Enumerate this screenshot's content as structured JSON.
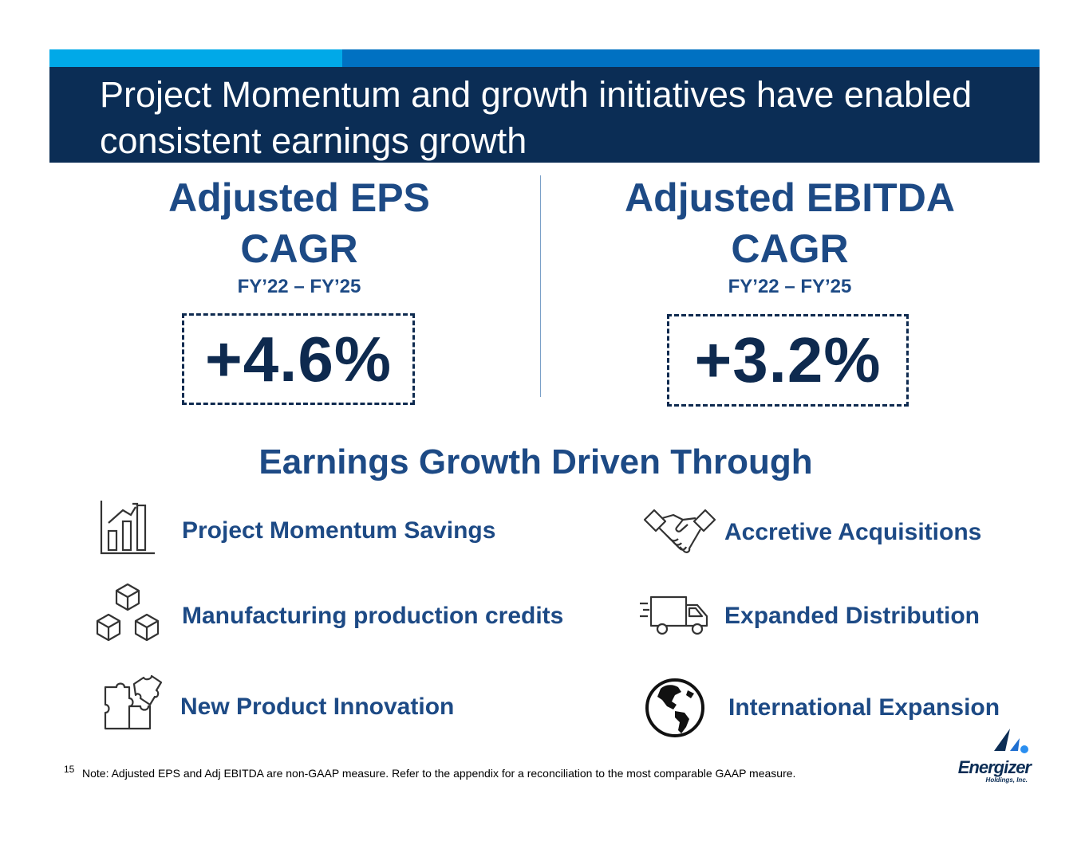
{
  "header": {
    "title_line1": "Project Momentum and growth initiatives have enabled",
    "title_line2": "consistent earnings growth"
  },
  "metrics": [
    {
      "heading_line1": "Adjusted EPS",
      "heading_line2": "CAGR",
      "period": "FY’22 – FY’25",
      "value": "+4.6%"
    },
    {
      "heading_line1": "Adjusted EBITDA",
      "heading_line2": "CAGR",
      "period": "FY’22 – FY’25",
      "value": "+3.2%"
    }
  ],
  "drivers": {
    "heading": "Earnings Growth Driven Through",
    "items": [
      {
        "label": "Project Momentum Savings",
        "icon": "bar-chart-growth-icon"
      },
      {
        "label": "Accretive Acquisitions",
        "icon": "handshake-icon"
      },
      {
        "label": "Manufacturing production credits",
        "icon": "stacked-cubes-icon"
      },
      {
        "label": "Expanded Distribution",
        "icon": "delivery-truck-icon"
      },
      {
        "label": "New Product Innovation",
        "icon": "puzzle-pieces-icon"
      },
      {
        "label": "International Expansion",
        "icon": "globe-americas-icon"
      }
    ]
  },
  "footer": {
    "page_number": "15",
    "note": "Note: Adjusted EPS and Adj EBITDA are non-GAAP measure. Refer to the appendix for a reconciliation to the most comparable GAAP measure."
  },
  "logo": {
    "wordmark": "Energizer",
    "subtext": "Holdings, Inc."
  },
  "colors": {
    "header_bg": "#0b2d55",
    "accent_light": "#00a9e8",
    "accent_mid": "#0071c2",
    "text_blue": "#1d4a85"
  }
}
